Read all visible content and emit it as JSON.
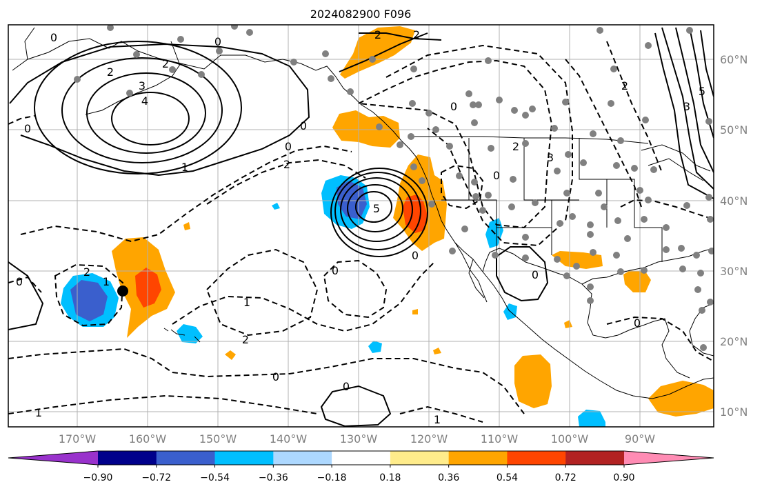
{
  "title": "2024082900 F096",
  "map": {
    "lon_labels": [
      "170°W",
      "160°W",
      "150°W",
      "140°W",
      "130°W",
      "120°W",
      "110°W",
      "100°W",
      "90°W"
    ],
    "lat_labels": [
      "60°N",
      "50°N",
      "40°N",
      "30°N",
      "20°N",
      "10°N"
    ],
    "contour_labels": [
      "0",
      "2",
      "2",
      "3",
      "4",
      "1",
      "0",
      "2",
      "2",
      "0",
      "0",
      "0",
      "2",
      "1",
      "2",
      "0",
      "0",
      "0",
      "1",
      "2",
      "1",
      "5",
      "0",
      "0",
      "3",
      "2",
      "0",
      "5",
      "3",
      "2",
      "0",
      "0",
      "0",
      "1"
    ]
  },
  "colorbar": {
    "ticks": [
      "−0.90",
      "−0.72",
      "−0.54",
      "−0.36",
      "−0.18",
      "0.18",
      "0.36",
      "0.54",
      "0.72",
      "0.90"
    ],
    "colors": [
      "#9932cc",
      "#00008b",
      "#3a5fcd",
      "#00bfff",
      "#add8ff",
      "#ffffff",
      "#ffec8b",
      "#ffa500",
      "#ff4500",
      "#b22222",
      "#ff8cb4"
    ]
  },
  "legend_colors": {
    "contour": "#000000",
    "grid": "#b0b0b0",
    "dots": "#808080"
  }
}
